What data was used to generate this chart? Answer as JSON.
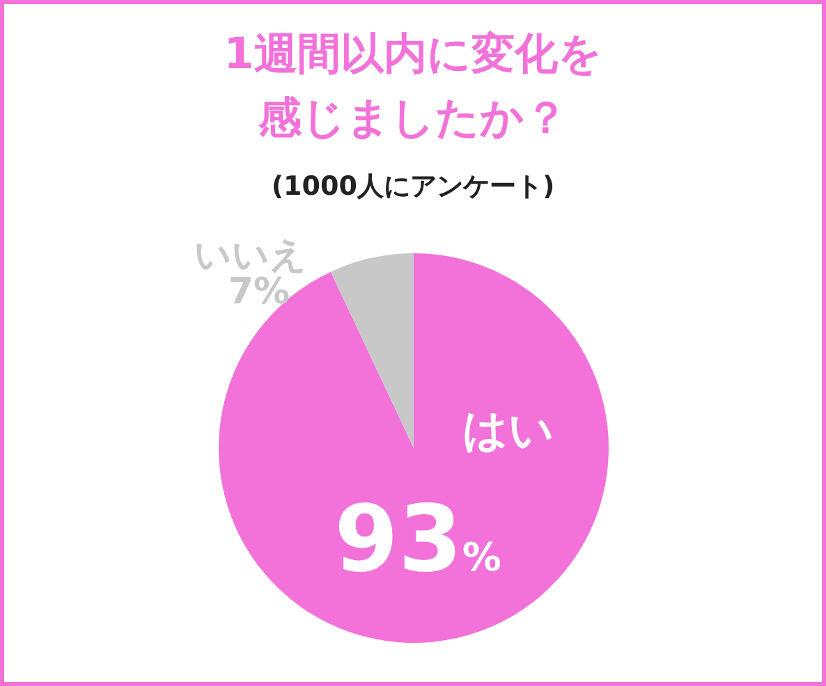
{
  "chart_data": {
    "type": "pie",
    "title": "1週間以内に変化を感じましたか？",
    "subtitle": "(1000人にアンケート)",
    "categories": [
      "はい",
      "いいえ"
    ],
    "values": [
      93,
      7
    ],
    "colors": [
      "#f272d9",
      "#c8c8c8"
    ],
    "value_labels": [
      "93%",
      "7%"
    ],
    "legend": false
  }
}
